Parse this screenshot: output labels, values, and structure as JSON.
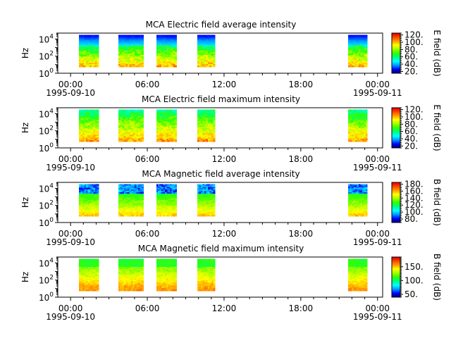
{
  "colors": {
    "scale": [
      "#00007f",
      "#0000ff",
      "#00a0ff",
      "#00ffff",
      "#00ff80",
      "#30ff00",
      "#a0ff00",
      "#ffff00",
      "#ffa000",
      "#ff4000",
      "#e00000"
    ]
  },
  "x_axis": {
    "range_hours": [
      -1.0,
      24.4
    ],
    "ticks": [
      {
        "hour": 0,
        "label": "00:00",
        "date": "1995-09-10"
      },
      {
        "hour": 6,
        "label": "06:00",
        "date": ""
      },
      {
        "hour": 12,
        "label": "12:00",
        "date": ""
      },
      {
        "hour": 18,
        "label": "18:00",
        "date": ""
      },
      {
        "hour": 24,
        "label": "00:00",
        "date": "1995-09-11"
      }
    ],
    "minor_step_hours": 1
  },
  "chart_data": [
    {
      "type": "heatmap",
      "title": "MCA  Electric field average intensity",
      "ylabel": "Hz",
      "ylim": [
        1,
        50000
      ],
      "log_y": true,
      "y_ticks": [
        {
          "value": 1,
          "label": "10",
          "exp": "0"
        },
        {
          "value": 100,
          "label": "10",
          "exp": "2"
        },
        {
          "value": 10000,
          "label": "10",
          "exp": "4"
        }
      ],
      "colorbar": {
        "label": "E field (dB)",
        "range": [
          15,
          125
        ],
        "ticks": [
          "20.",
          "40.",
          "60.",
          "80.",
          "100.",
          "120."
        ],
        "tick_values": [
          20,
          40,
          60,
          80,
          100,
          120
        ]
      },
      "freq_range_hz": [
        5.6,
        31000
      ],
      "segments_hours": [
        [
          0.65,
          2.2
        ],
        [
          3.75,
          5.7
        ],
        [
          6.7,
          8.3
        ],
        [
          9.9,
          11.3
        ],
        [
          21.7,
          23.2
        ]
      ],
      "spectrum_profile": "electric_avg"
    },
    {
      "type": "heatmap",
      "title": "MCA  Electric field maximum intensity",
      "ylabel": "Hz",
      "ylim": [
        1,
        50000
      ],
      "log_y": true,
      "y_ticks": [
        {
          "value": 1,
          "label": "10",
          "exp": "0"
        },
        {
          "value": 100,
          "label": "10",
          "exp": "2"
        },
        {
          "value": 10000,
          "label": "10",
          "exp": "4"
        }
      ],
      "colorbar": {
        "label": "E field (dB)",
        "range": [
          15,
          125
        ],
        "ticks": [
          "20.",
          "40.",
          "60.",
          "80.",
          "100.",
          "120."
        ],
        "tick_values": [
          20,
          40,
          60,
          80,
          100,
          120
        ]
      },
      "freq_range_hz": [
        5.6,
        31000
      ],
      "segments_hours": [
        [
          0.65,
          2.2
        ],
        [
          3.75,
          5.7
        ],
        [
          6.7,
          8.3
        ],
        [
          9.9,
          11.3
        ],
        [
          21.7,
          23.2
        ]
      ],
      "spectrum_profile": "electric_max"
    },
    {
      "type": "heatmap",
      "title": "MCA  Magnetic field average intensity",
      "ylabel": "Hz",
      "ylim": [
        1,
        50000
      ],
      "log_y": true,
      "y_ticks": [
        {
          "value": 1,
          "label": "10",
          "exp": "0"
        },
        {
          "value": 100,
          "label": "10",
          "exp": "2"
        },
        {
          "value": 10000,
          "label": "10",
          "exp": "4"
        }
      ],
      "colorbar": {
        "label": "B field (dB)",
        "range": [
          70,
          185
        ],
        "ticks": [
          "80.",
          "100.",
          "120.",
          "140.",
          "160.",
          "180."
        ],
        "tick_values": [
          80,
          100,
          120,
          140,
          160,
          180
        ]
      },
      "freq_range_hz": [
        5.6,
        31000
      ],
      "segments_hours": [
        [
          0.65,
          2.2
        ],
        [
          3.75,
          5.7
        ],
        [
          6.7,
          8.3
        ],
        [
          9.9,
          11.3
        ],
        [
          21.7,
          23.2
        ]
      ],
      "spectrum_profile": "magnetic_avg"
    },
    {
      "type": "heatmap",
      "title": "MCA  Magnetic field maximum intensity",
      "ylabel": "Hz",
      "ylim": [
        1,
        50000
      ],
      "log_y": true,
      "y_ticks": [
        {
          "value": 1,
          "label": "10",
          "exp": "0"
        },
        {
          "value": 100,
          "label": "10",
          "exp": "2"
        },
        {
          "value": 10000,
          "label": "10",
          "exp": "4"
        }
      ],
      "colorbar": {
        "label": "B field (dB)",
        "range": [
          40,
          185
        ],
        "ticks": [
          "50.",
          "100.",
          "150."
        ],
        "tick_values": [
          50,
          100,
          150
        ]
      },
      "freq_range_hz": [
        5.6,
        31000
      ],
      "segments_hours": [
        [
          0.65,
          2.2
        ],
        [
          3.75,
          5.7
        ],
        [
          6.7,
          8.3
        ],
        [
          9.9,
          11.3
        ],
        [
          21.7,
          23.2
        ]
      ],
      "spectrum_profile": "magnetic_max"
    }
  ]
}
